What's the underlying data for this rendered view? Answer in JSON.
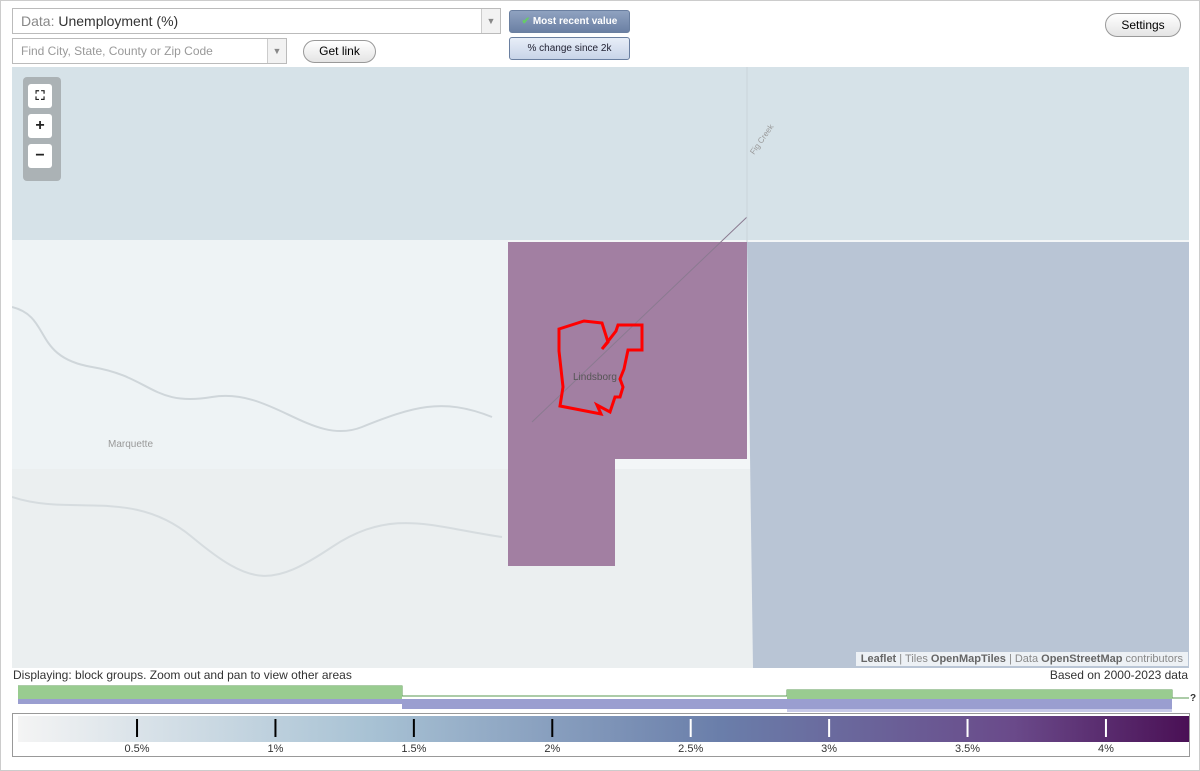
{
  "controls": {
    "data_label": "Data:",
    "data_value": "Unemployment (%)",
    "search_placeholder": "Find City, State, County or Zip Code",
    "get_link": "Get link",
    "most_recent": "Most recent value",
    "change_since": "% change since 2k",
    "settings": "Settings",
    "zoom_in": "+",
    "zoom_out": "−"
  },
  "map": {
    "labels": {
      "city": "Lindsborg",
      "town": "Marquette",
      "creek": "Fig Creek"
    },
    "attribution": {
      "leaflet": "Leaflet",
      "tiles_prefix": "| Tiles",
      "tiles": "OpenMapTiles",
      "data_prefix": "| Data",
      "data": "OpenStreetMap",
      "suffix": "contributors"
    }
  },
  "status": {
    "displaying": "Displaying: block groups. Zoom out and pan to view other areas",
    "based_on": "Based on 2000-2023 data"
  },
  "legend": {
    "range": [
      0.07,
      4.3
    ],
    "ticks": [
      {
        "value": 0.5,
        "label": "0.5%"
      },
      {
        "value": 1,
        "label": "1%"
      },
      {
        "value": 1.5,
        "label": "1.5%"
      },
      {
        "value": 2,
        "label": "2%"
      },
      {
        "value": 2.5,
        "label": "2.5%"
      },
      {
        "value": 3,
        "label": "3%"
      },
      {
        "value": 3.5,
        "label": "3.5%"
      },
      {
        "value": 4,
        "label": "4%"
      }
    ],
    "help": "?"
  }
}
